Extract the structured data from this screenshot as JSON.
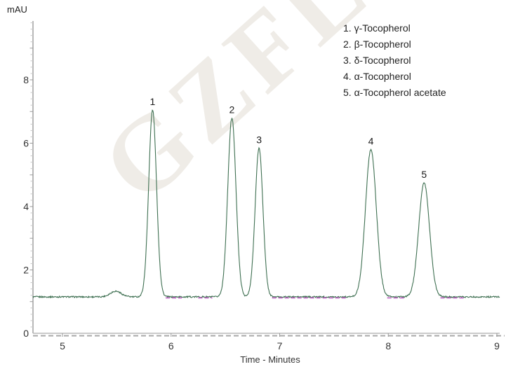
{
  "watermark": {
    "text": "GZFL"
  },
  "legend": {
    "items": [
      "1. γ-Tocopherol",
      "2. β-Tocopherol",
      "3. δ-Tocopherol",
      "4. α-Tocopherol",
      "5. α-Tocopherol acetate"
    ]
  },
  "chart_data": {
    "type": "line",
    "title": "",
    "xlabel": "Time - Minutes",
    "ylabel": "mAU",
    "xlim": [
      4.73,
      9.03
    ],
    "ylim": [
      0,
      9.86
    ],
    "x_ticks": [
      5,
      6,
      7,
      8,
      9
    ],
    "y_ticks": [
      0,
      2,
      4,
      6,
      8
    ],
    "grid": false,
    "legend_position": "top-right",
    "trace_color": "#3f7052",
    "baseline_marker_color": "#bb5fc0",
    "axis_color": "#9a9a9a",
    "baseline_mAU": 1.15,
    "noise_amplitude_mAU": 0.022,
    "peaks": [
      {
        "label": "1",
        "name": "γ-Tocopherol",
        "time_min": 5.83,
        "apex_mAU": 7.05,
        "sigma_min": 0.036
      },
      {
        "label": "2",
        "name": "β-Tocopherol",
        "time_min": 6.56,
        "apex_mAU": 6.8,
        "sigma_min": 0.038
      },
      {
        "label": "3",
        "name": "δ-Tocopherol",
        "time_min": 6.81,
        "apex_mAU": 5.85,
        "sigma_min": 0.036
      },
      {
        "label": "4",
        "name": "α-Tocopherol",
        "time_min": 7.84,
        "apex_mAU": 5.8,
        "sigma_min": 0.05
      },
      {
        "label": "5",
        "name": "α-Tocopherol acetate",
        "time_min": 8.33,
        "apex_mAU": 4.75,
        "sigma_min": 0.05
      }
    ],
    "minor_peak": {
      "time_min": 5.49,
      "apex_mAU": 1.33,
      "sigma_min": 0.05
    },
    "baseline_marker_segments_min": [
      [
        5.95,
        6.1
      ],
      [
        6.25,
        6.38
      ],
      [
        6.93,
        7.61
      ],
      [
        7.99,
        8.16
      ],
      [
        8.48,
        8.7
      ]
    ]
  }
}
